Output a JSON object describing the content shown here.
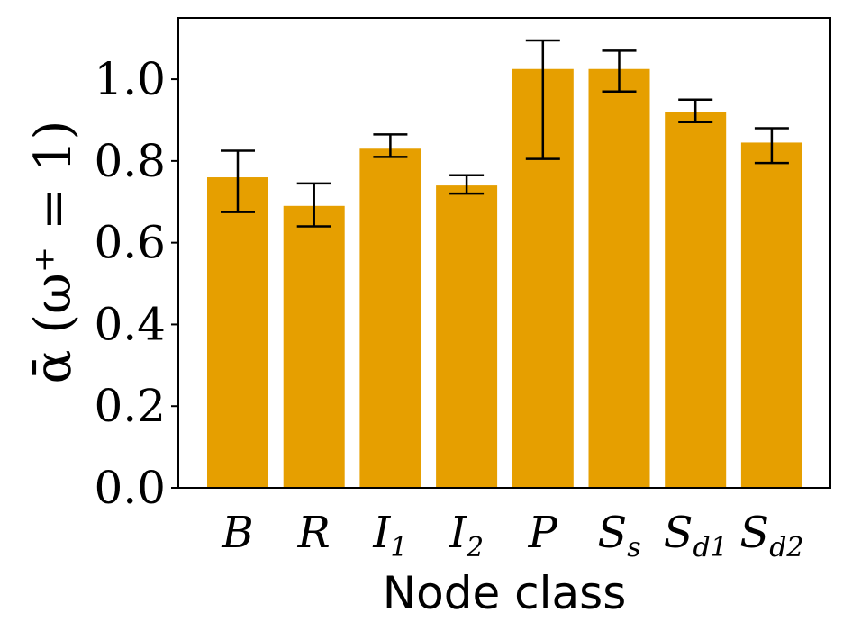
{
  "chart_data": {
    "type": "bar",
    "categories": [
      {
        "base": "B",
        "sub": ""
      },
      {
        "base": "R",
        "sub": ""
      },
      {
        "base": "I",
        "sub": "1"
      },
      {
        "base": "I",
        "sub": "2"
      },
      {
        "base": "P",
        "sub": ""
      },
      {
        "base": "S",
        "sub": "s"
      },
      {
        "base": "S",
        "sub": "d1"
      },
      {
        "base": "S",
        "sub": "d2"
      }
    ],
    "values": [
      0.76,
      0.69,
      0.83,
      0.74,
      1.025,
      1.025,
      0.92,
      0.845
    ],
    "error_low": [
      0.675,
      0.64,
      0.81,
      0.72,
      0.805,
      0.97,
      0.895,
      0.795
    ],
    "error_high": [
      0.825,
      0.745,
      0.865,
      0.765,
      1.095,
      1.07,
      0.95,
      0.88
    ],
    "xlabel": "Node class",
    "ylabel": "ᾱ (ω⁺ = 1)",
    "ylim": [
      0,
      1.15
    ],
    "yticks": [
      0.0,
      0.2,
      0.4,
      0.6,
      0.8,
      1.0
    ],
    "ytick_labels": [
      "0.0",
      "0.2",
      "0.4",
      "0.6",
      "0.8",
      "1.0"
    ],
    "bar_color": "#e69f00",
    "error_color": "#000000",
    "grid": false,
    "legend": "none"
  }
}
